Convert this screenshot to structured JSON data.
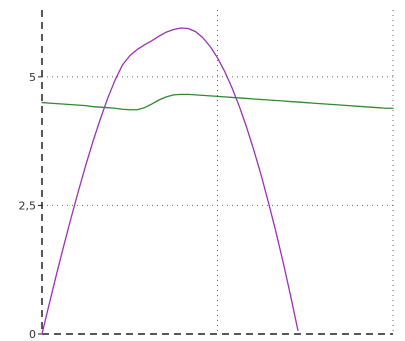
{
  "chart_data": {
    "type": "line",
    "x": [
      0,
      0.25,
      0.5,
      0.75,
      1.0,
      1.25,
      1.5,
      1.75,
      2.0,
      2.25,
      2.5,
      2.75,
      3.0,
      3.25,
      3.5,
      3.75,
      4.0,
      4.25,
      4.5,
      4.75,
      5.0,
      5.25,
      5.5,
      5.75,
      6.0,
      6.25,
      6.5,
      6.75,
      7.0,
      7.25,
      7.5,
      7.75,
      8.0,
      8.25,
      8.5,
      8.75,
      9.0,
      9.25,
      9.5,
      9.75,
      10.0,
      10.25,
      10.5,
      10.75,
      11.0,
      11.25,
      11.5,
      11.75,
      12.0
    ],
    "series": [
      {
        "color": "#9932b4",
        "values": [
          0.0,
          0.59,
          1.17,
          1.73,
          2.27,
          2.79,
          3.29,
          3.76,
          4.19,
          4.59,
          4.94,
          5.23,
          5.41,
          5.53,
          5.62,
          5.7,
          5.79,
          5.87,
          5.92,
          5.95,
          5.94,
          5.88,
          5.76,
          5.59,
          5.37,
          5.1,
          4.78,
          4.42,
          4.01,
          3.56,
          3.07,
          2.54,
          1.98,
          1.38,
          0.74,
          0.07,
          null,
          null,
          null,
          null,
          null,
          null,
          null,
          null,
          null,
          null,
          null,
          null,
          null
        ]
      },
      {
        "color": "#2e8b2e",
        "values": [
          4.5,
          4.49,
          4.48,
          4.47,
          4.46,
          4.45,
          4.44,
          4.42,
          4.41,
          4.4,
          4.39,
          4.37,
          4.36,
          4.36,
          4.4,
          4.47,
          4.55,
          4.61,
          4.65,
          4.66,
          4.66,
          4.65,
          4.64,
          4.63,
          4.62,
          4.61,
          4.6,
          4.59,
          4.58,
          4.57,
          4.56,
          4.55,
          4.54,
          4.53,
          4.52,
          4.51,
          4.5,
          4.49,
          4.48,
          4.47,
          4.46,
          4.45,
          4.44,
          4.43,
          4.42,
          4.41,
          4.4,
          4.39,
          4.39
        ]
      }
    ],
    "y_ticks": [
      {
        "value": 0,
        "label": "0"
      },
      {
        "value": 2.5,
        "label": "2,5"
      },
      {
        "value": 5,
        "label": "5"
      }
    ],
    "x_gridlines": [
      6,
      12
    ],
    "xlim": [
      0,
      12
    ],
    "ylim": [
      0,
      6.3
    ],
    "grid": true,
    "axis_color": "#222222",
    "grid_color": "#666666"
  }
}
